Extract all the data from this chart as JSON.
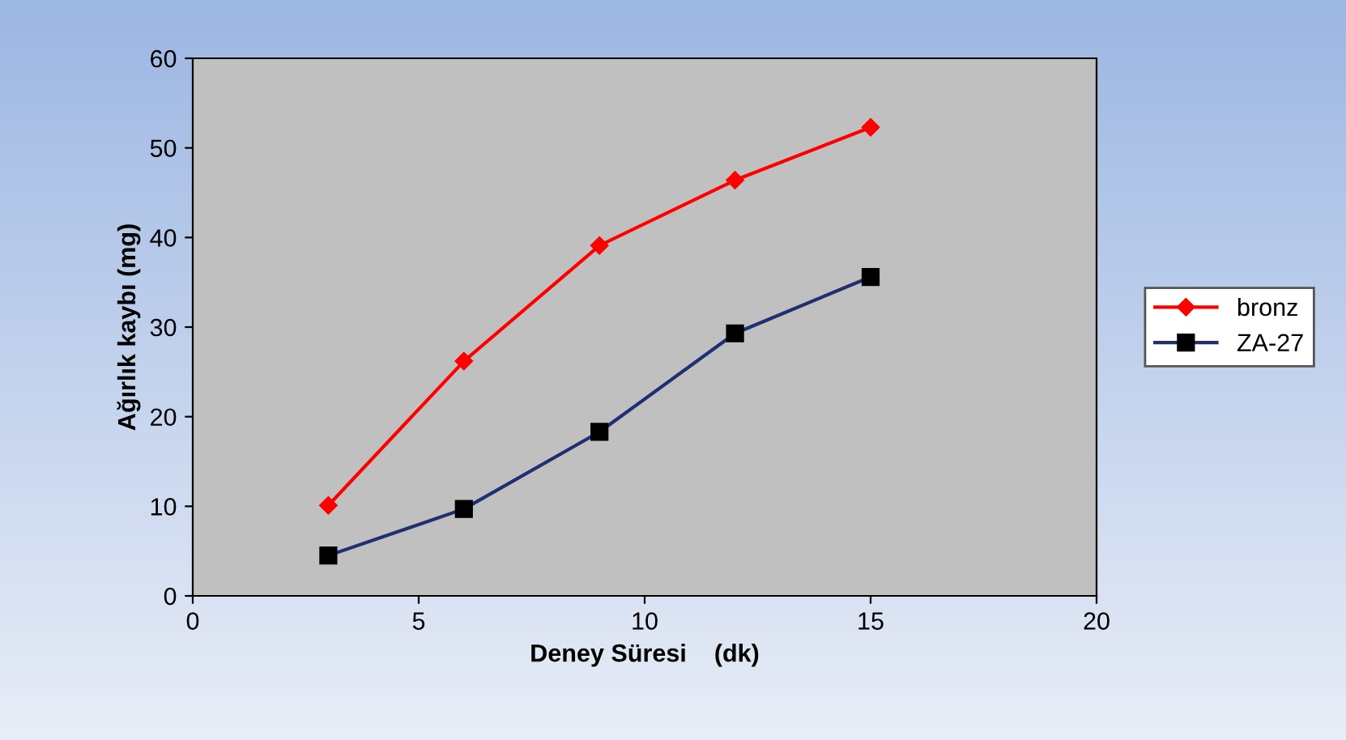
{
  "chart_data": {
    "type": "line",
    "xlabel": "Deney Süresi    (dk)",
    "ylabel": "Ağırlık kaybı (mg)",
    "xlim": [
      0,
      20
    ],
    "xticks": [
      0,
      5,
      10,
      15,
      20
    ],
    "ylim": [
      0,
      60
    ],
    "yticks": [
      0,
      10,
      20,
      30,
      40,
      50,
      60
    ],
    "grid": false,
    "legend": "right",
    "series": [
      {
        "name": "bronz",
        "color": "#ff0000",
        "marker": "diamond",
        "x": [
          3,
          6,
          9,
          12,
          15
        ],
        "values": [
          10.1,
          26.2,
          39.1,
          46.4,
          52.3
        ]
      },
      {
        "name": "ZA-27",
        "color": "#1f2f6f",
        "marker": "square",
        "x": [
          3,
          6,
          9,
          12,
          15
        ],
        "values": [
          4.5,
          9.7,
          18.3,
          29.3,
          35.6
        ]
      }
    ]
  }
}
